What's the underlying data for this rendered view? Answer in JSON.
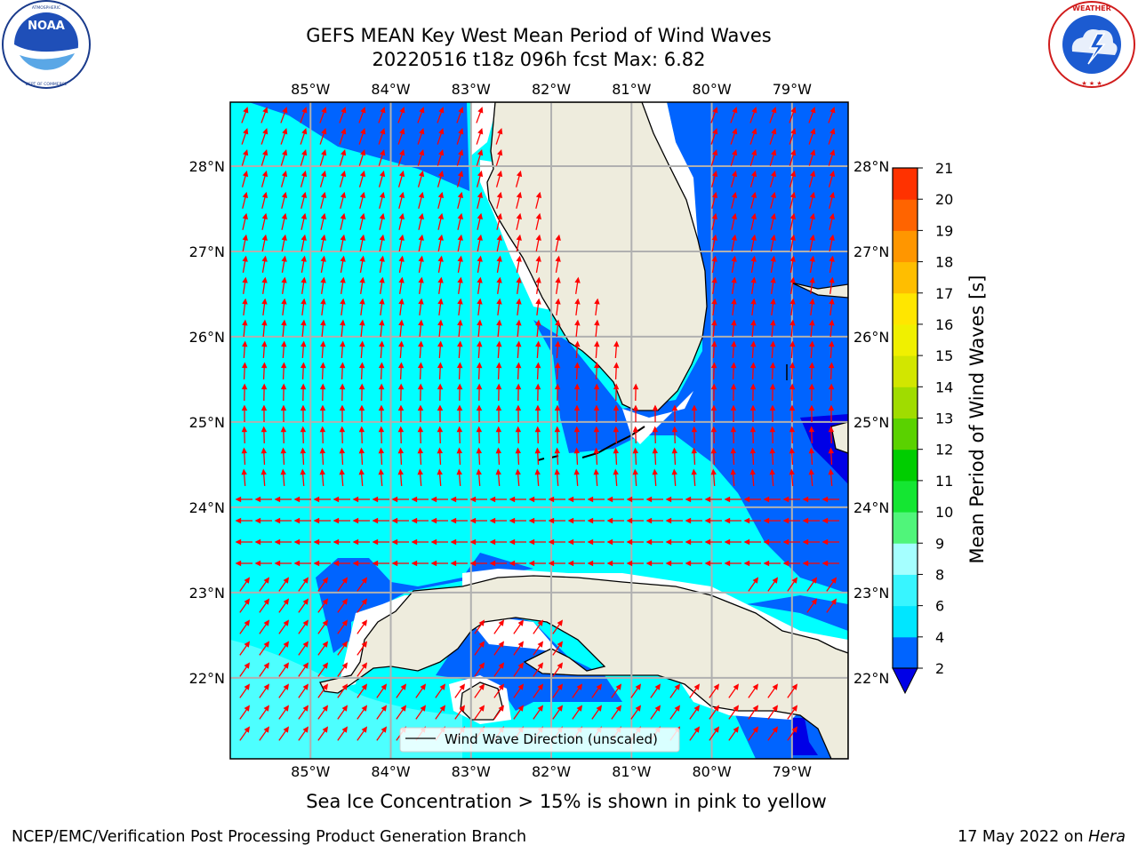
{
  "title": {
    "line1": "GEFS MEAN Key West Mean Period of Wind Waves",
    "line2": "20220516 t18z 096h fcst   Max: 6.82"
  },
  "logos": {
    "left": {
      "name": "NOAA",
      "icon": "noaa-logo",
      "ring_text": "NATIONAL OCEANIC AND ATMOSPHERIC ADMINISTRATION · U.S. DEPARTMENT OF COMMERCE"
    },
    "right": {
      "name": "NATIONAL WEATHER SERVICE",
      "icon": "nws-logo"
    }
  },
  "map": {
    "lon_labels": [
      "85°W",
      "84°W",
      "83°W",
      "82°W",
      "81°W",
      "80°W",
      "79°W"
    ],
    "lat_labels": [
      "28°N",
      "27°N",
      "26°N",
      "25°N",
      "24°N",
      "23°N",
      "22°N"
    ],
    "lon_range": [
      -86.0,
      -78.3
    ],
    "lat_range": [
      21.05,
      28.75
    ],
    "land_color": "#eeecdd",
    "arrow_color": "#ff0000",
    "grid": true,
    "legend": {
      "label": "Wind Wave Direction (unscaled)",
      "placement": "lower-center"
    }
  },
  "colorbar": {
    "label": "Mean Period of Wind Waves [s]",
    "ticks": [
      "2",
      "4",
      "6",
      "8",
      "9",
      "10",
      "11",
      "12",
      "13",
      "14",
      "15",
      "16",
      "17",
      "18",
      "19",
      "20",
      "21"
    ],
    "colors": [
      "#0064ff",
      "#00e6ff",
      "#38f5ff",
      "#a5ffff",
      "#50f57a",
      "#14e632",
      "#00cd00",
      "#5ad200",
      "#a0dc00",
      "#d2e600",
      "#f0f000",
      "#ffe600",
      "#ffbe00",
      "#ff9600",
      "#ff6400",
      "#ff3200"
    ],
    "under_color": "#0000e6"
  },
  "note": "Sea Ice Concentration > 15% is shown in pink to yellow",
  "footer": {
    "left": "NCEP/EMC/Verification Post Processing Product Generation Branch",
    "right_prefix": "17 May 2022 on ",
    "right_host": "Hera"
  }
}
